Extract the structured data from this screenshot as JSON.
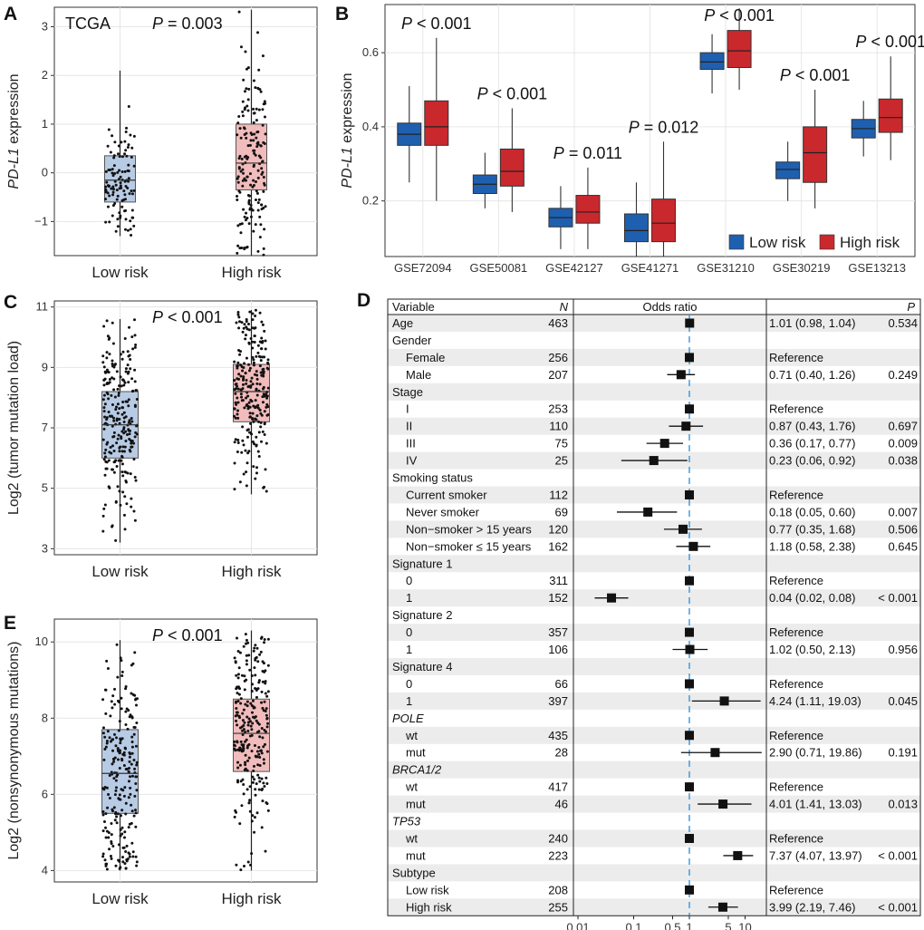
{
  "panels": {
    "A": {
      "letter": "A",
      "chart_data": {
        "type": "box",
        "dataset_label": "TCGA",
        "annotation": "P = 0.003",
        "ylabel_italic": "PD-L1",
        "ylabel_rest": " expression",
        "categories": [
          "Low risk",
          "High risk"
        ],
        "boxes": [
          {
            "name": "Low risk",
            "min": -1.3,
            "q1": -0.6,
            "median": -0.15,
            "q3": 0.35,
            "max": 2.1,
            "color": "#b8cbe4",
            "n_points": 110
          },
          {
            "name": "High risk",
            "min": -1.7,
            "q1": -0.35,
            "median": 0.2,
            "q3": 1.0,
            "max": 3.35,
            "color": "#f2bcbc",
            "n_points": 170
          }
        ],
        "ylim": [
          -1.7,
          3.4
        ],
        "yticks": [
          -1,
          0,
          1,
          2,
          3
        ]
      }
    },
    "B": {
      "letter": "B",
      "chart_data": {
        "type": "box",
        "ylabel_italic": "PD-L1",
        "ylabel_rest": " expression",
        "categories": [
          "GSE72094",
          "GSE50081",
          "GSE42127",
          "GSE41271",
          "GSE31210",
          "GSE30219",
          "GSE13213"
        ],
        "annotations": [
          "P < 0.001",
          "P < 0.001",
          "P = 0.011",
          "P = 0.012",
          "P < 0.001",
          "P < 0.001",
          "P < 0.001"
        ],
        "series": [
          {
            "name": "Low risk",
            "color": "#1f5fb0",
            "boxes": [
              {
                "min": 0.25,
                "q1": 0.35,
                "median": 0.38,
                "q3": 0.41,
                "max": 0.51
              },
              {
                "min": 0.18,
                "q1": 0.22,
                "median": 0.245,
                "q3": 0.27,
                "max": 0.33
              },
              {
                "min": 0.07,
                "q1": 0.13,
                "median": 0.155,
                "q3": 0.18,
                "max": 0.24
              },
              {
                "min": 0.05,
                "q1": 0.09,
                "median": 0.12,
                "q3": 0.165,
                "max": 0.25
              },
              {
                "min": 0.49,
                "q1": 0.555,
                "median": 0.575,
                "q3": 0.6,
                "max": 0.65
              },
              {
                "min": 0.2,
                "q1": 0.26,
                "median": 0.285,
                "q3": 0.305,
                "max": 0.36
              },
              {
                "min": 0.32,
                "q1": 0.37,
                "median": 0.395,
                "q3": 0.42,
                "max": 0.47
              }
            ]
          },
          {
            "name": "High risk",
            "color": "#c9282d",
            "boxes": [
              {
                "min": 0.2,
                "q1": 0.35,
                "median": 0.4,
                "q3": 0.47,
                "max": 0.64
              },
              {
                "min": 0.17,
                "q1": 0.24,
                "median": 0.28,
                "q3": 0.34,
                "max": 0.45
              },
              {
                "min": 0.07,
                "q1": 0.14,
                "median": 0.17,
                "q3": 0.215,
                "max": 0.29
              },
              {
                "min": 0.05,
                "q1": 0.09,
                "median": 0.14,
                "q3": 0.205,
                "max": 0.36
              },
              {
                "min": 0.5,
                "q1": 0.56,
                "median": 0.605,
                "q3": 0.66,
                "max": 0.72
              },
              {
                "min": 0.18,
                "q1": 0.25,
                "median": 0.33,
                "q3": 0.4,
                "max": 0.5
              },
              {
                "min": 0.31,
                "q1": 0.385,
                "median": 0.425,
                "q3": 0.475,
                "max": 0.59
              }
            ]
          }
        ],
        "ylim": [
          0.05,
          0.73
        ],
        "yticks": [
          0.2,
          0.4,
          0.6
        ],
        "legend": [
          "Low risk",
          "High risk"
        ],
        "legend_position": "bottom-right"
      }
    },
    "C": {
      "letter": "C",
      "chart_data": {
        "type": "box",
        "annotation": "P < 0.001",
        "ylabel": "Log2 (tumor mutation load)",
        "categories": [
          "Low risk",
          "High risk"
        ],
        "boxes": [
          {
            "name": "Low risk",
            "min": 3.2,
            "q1": 6.0,
            "median": 7.1,
            "q3": 8.2,
            "max": 10.6,
            "color": "#b8cbe4",
            "n_points": 240
          },
          {
            "name": "High risk",
            "min": 4.8,
            "q1": 7.2,
            "median": 8.2,
            "q3": 9.1,
            "max": 10.9,
            "color": "#f2bcbc",
            "n_points": 250
          }
        ],
        "ylim": [
          2.8,
          11.2
        ],
        "yticks": [
          3,
          5,
          7,
          9,
          11
        ]
      }
    },
    "E": {
      "letter": "E",
      "chart_data": {
        "type": "box",
        "annotation": "P < 0.001",
        "ylabel": "Log2 (nonsynonymous mutations)",
        "categories": [
          "Low risk",
          "High risk"
        ],
        "boxes": [
          {
            "name": "Low risk",
            "min": 4.0,
            "q1": 5.5,
            "median": 6.55,
            "q3": 7.7,
            "max": 10.05,
            "color": "#b8cbe4",
            "n_points": 230
          },
          {
            "name": "High risk",
            "min": 4.0,
            "q1": 6.6,
            "median": 7.6,
            "q3": 8.5,
            "max": 10.3,
            "color": "#f2bcbc",
            "n_points": 250
          }
        ],
        "ylim": [
          3.7,
          10.6
        ],
        "yticks": [
          4,
          6,
          8,
          10
        ]
      }
    },
    "D": {
      "letter": "D",
      "header": {
        "variable": "Variable",
        "n": "N",
        "odds": "Odds ratio",
        "p": "P"
      },
      "xticks": [
        {
          "label": "0.01",
          "value": 0.01
        },
        {
          "label": "0.1",
          "value": 0.1
        },
        {
          "label": "0.5",
          "value": 0.5
        },
        {
          "label": "1",
          "value": 1
        },
        {
          "label": "5",
          "value": 5
        },
        {
          "label": "10",
          "value": 10
        }
      ],
      "chart_data": {
        "type": "forest",
        "xlim_log": [
          0.01,
          20
        ],
        "reference_line": 1,
        "rows": [
          {
            "label": "Age",
            "indent": false,
            "italic": false,
            "n": "463",
            "or": 1.01,
            "lo": 0.98,
            "hi": 1.04,
            "ci": "1.01 (0.98, 1.04)",
            "p": "0.534"
          },
          {
            "label": "Gender",
            "indent": false,
            "italic": false,
            "n": "",
            "or": null,
            "ci": "",
            "p": ""
          },
          {
            "label": "Female",
            "indent": true,
            "italic": false,
            "n": "256",
            "or": 1,
            "lo": 1,
            "hi": 1,
            "ci": "Reference",
            "p": ""
          },
          {
            "label": "Male",
            "indent": true,
            "italic": false,
            "n": "207",
            "or": 0.71,
            "lo": 0.4,
            "hi": 1.26,
            "ci": "0.71 (0.40, 1.26)",
            "p": "0.249"
          },
          {
            "label": "Stage",
            "indent": false,
            "italic": false,
            "n": "",
            "or": null,
            "ci": "",
            "p": ""
          },
          {
            "label": "I",
            "indent": true,
            "italic": false,
            "n": "253",
            "or": 1,
            "lo": 1,
            "hi": 1,
            "ci": "Reference",
            "p": ""
          },
          {
            "label": "II",
            "indent": true,
            "italic": false,
            "n": "110",
            "or": 0.87,
            "lo": 0.43,
            "hi": 1.76,
            "ci": "0.87 (0.43, 1.76)",
            "p": "0.697"
          },
          {
            "label": "III",
            "indent": true,
            "italic": false,
            "n": "75",
            "or": 0.36,
            "lo": 0.17,
            "hi": 0.77,
            "ci": "0.36 (0.17, 0.77)",
            "p": "0.009"
          },
          {
            "label": "IV",
            "indent": true,
            "italic": false,
            "n": "25",
            "or": 0.23,
            "lo": 0.06,
            "hi": 0.92,
            "ci": "0.23 (0.06, 0.92)",
            "p": "0.038"
          },
          {
            "label": "Smoking status",
            "indent": false,
            "italic": false,
            "n": "",
            "or": null,
            "ci": "",
            "p": ""
          },
          {
            "label": "Current smoker",
            "indent": true,
            "italic": false,
            "n": "112",
            "or": 1,
            "lo": 1,
            "hi": 1,
            "ci": "Reference",
            "p": ""
          },
          {
            "label": "Never smoker",
            "indent": true,
            "italic": false,
            "n": "69",
            "or": 0.18,
            "lo": 0.05,
            "hi": 0.6,
            "ci": "0.18 (0.05, 0.60)",
            "p": "0.007"
          },
          {
            "label": "Non−smoker > 15 years",
            "indent": true,
            "italic": false,
            "n": "120",
            "or": 0.77,
            "lo": 0.35,
            "hi": 1.68,
            "ci": "0.77 (0.35, 1.68)",
            "p": "0.506"
          },
          {
            "label": "Non−smoker ≤ 15 years",
            "indent": true,
            "italic": false,
            "n": "162",
            "or": 1.18,
            "lo": 0.58,
            "hi": 2.38,
            "ci": "1.18 (0.58, 2.38)",
            "p": "0.645"
          },
          {
            "label": "Signature 1",
            "indent": false,
            "italic": false,
            "n": "",
            "or": null,
            "ci": "",
            "p": ""
          },
          {
            "label": "0",
            "indent": true,
            "italic": false,
            "n": "311",
            "or": 1,
            "lo": 1,
            "hi": 1,
            "ci": "Reference",
            "p": ""
          },
          {
            "label": "1",
            "indent": true,
            "italic": false,
            "n": "152",
            "or": 0.04,
            "lo": 0.02,
            "hi": 0.08,
            "ci": "0.04 (0.02, 0.08)",
            "p": "< 0.001"
          },
          {
            "label": "Signature 2",
            "indent": false,
            "italic": false,
            "n": "",
            "or": null,
            "ci": "",
            "p": ""
          },
          {
            "label": "0",
            "indent": true,
            "italic": false,
            "n": "357",
            "or": 1,
            "lo": 1,
            "hi": 1,
            "ci": "Reference",
            "p": ""
          },
          {
            "label": "1",
            "indent": true,
            "italic": false,
            "n": "106",
            "or": 1.02,
            "lo": 0.5,
            "hi": 2.13,
            "ci": "1.02 (0.50, 2.13)",
            "p": "0.956"
          },
          {
            "label": "Signature 4",
            "indent": false,
            "italic": false,
            "n": "",
            "or": null,
            "ci": "",
            "p": ""
          },
          {
            "label": "0",
            "indent": true,
            "italic": false,
            "n": "66",
            "or": 1,
            "lo": 1,
            "hi": 1,
            "ci": "Reference",
            "p": ""
          },
          {
            "label": "1",
            "indent": true,
            "italic": false,
            "n": "397",
            "or": 4.24,
            "lo": 1.11,
            "hi": 19.03,
            "ci": "4.24 (1.11, 19.03)",
            "p": "0.045"
          },
          {
            "label": "POLE",
            "indent": false,
            "italic": true,
            "n": "",
            "or": null,
            "ci": "",
            "p": ""
          },
          {
            "label": "wt",
            "indent": true,
            "italic": false,
            "n": "435",
            "or": 1,
            "lo": 1,
            "hi": 1,
            "ci": "Reference",
            "p": ""
          },
          {
            "label": "mut",
            "indent": true,
            "italic": false,
            "n": "28",
            "or": 2.9,
            "lo": 0.71,
            "hi": 19.86,
            "ci": "2.90 (0.71, 19.86)",
            "p": "0.191"
          },
          {
            "label": "BRCA1/2",
            "indent": false,
            "italic": true,
            "n": "",
            "or": null,
            "ci": "",
            "p": ""
          },
          {
            "label": "wt",
            "indent": true,
            "italic": false,
            "n": "417",
            "or": 1,
            "lo": 1,
            "hi": 1,
            "ci": "Reference",
            "p": ""
          },
          {
            "label": "mut",
            "indent": true,
            "italic": false,
            "n": "46",
            "or": 4.01,
            "lo": 1.41,
            "hi": 13.03,
            "ci": "4.01 (1.41, 13.03)",
            "p": "0.013"
          },
          {
            "label": "TP53",
            "indent": false,
            "italic": true,
            "n": "",
            "or": null,
            "ci": "",
            "p": ""
          },
          {
            "label": "wt",
            "indent": true,
            "italic": false,
            "n": "240",
            "or": 1,
            "lo": 1,
            "hi": 1,
            "ci": "Reference",
            "p": ""
          },
          {
            "label": "mut",
            "indent": true,
            "italic": false,
            "n": "223",
            "or": 7.37,
            "lo": 4.07,
            "hi": 13.97,
            "ci": "7.37 (4.07, 13.97)",
            "p": "< 0.001"
          },
          {
            "label": "Subtype",
            "indent": false,
            "italic": false,
            "n": "",
            "or": null,
            "ci": "",
            "p": ""
          },
          {
            "label": "Low risk",
            "indent": true,
            "italic": false,
            "n": "208",
            "or": 1,
            "lo": 1,
            "hi": 1,
            "ci": "Reference",
            "p": ""
          },
          {
            "label": "High risk",
            "indent": true,
            "italic": false,
            "n": "255",
            "or": 3.99,
            "lo": 2.19,
            "hi": 7.46,
            "ci": "3.99 (2.19, 7.46)",
            "p": "< 0.001"
          }
        ]
      }
    }
  }
}
